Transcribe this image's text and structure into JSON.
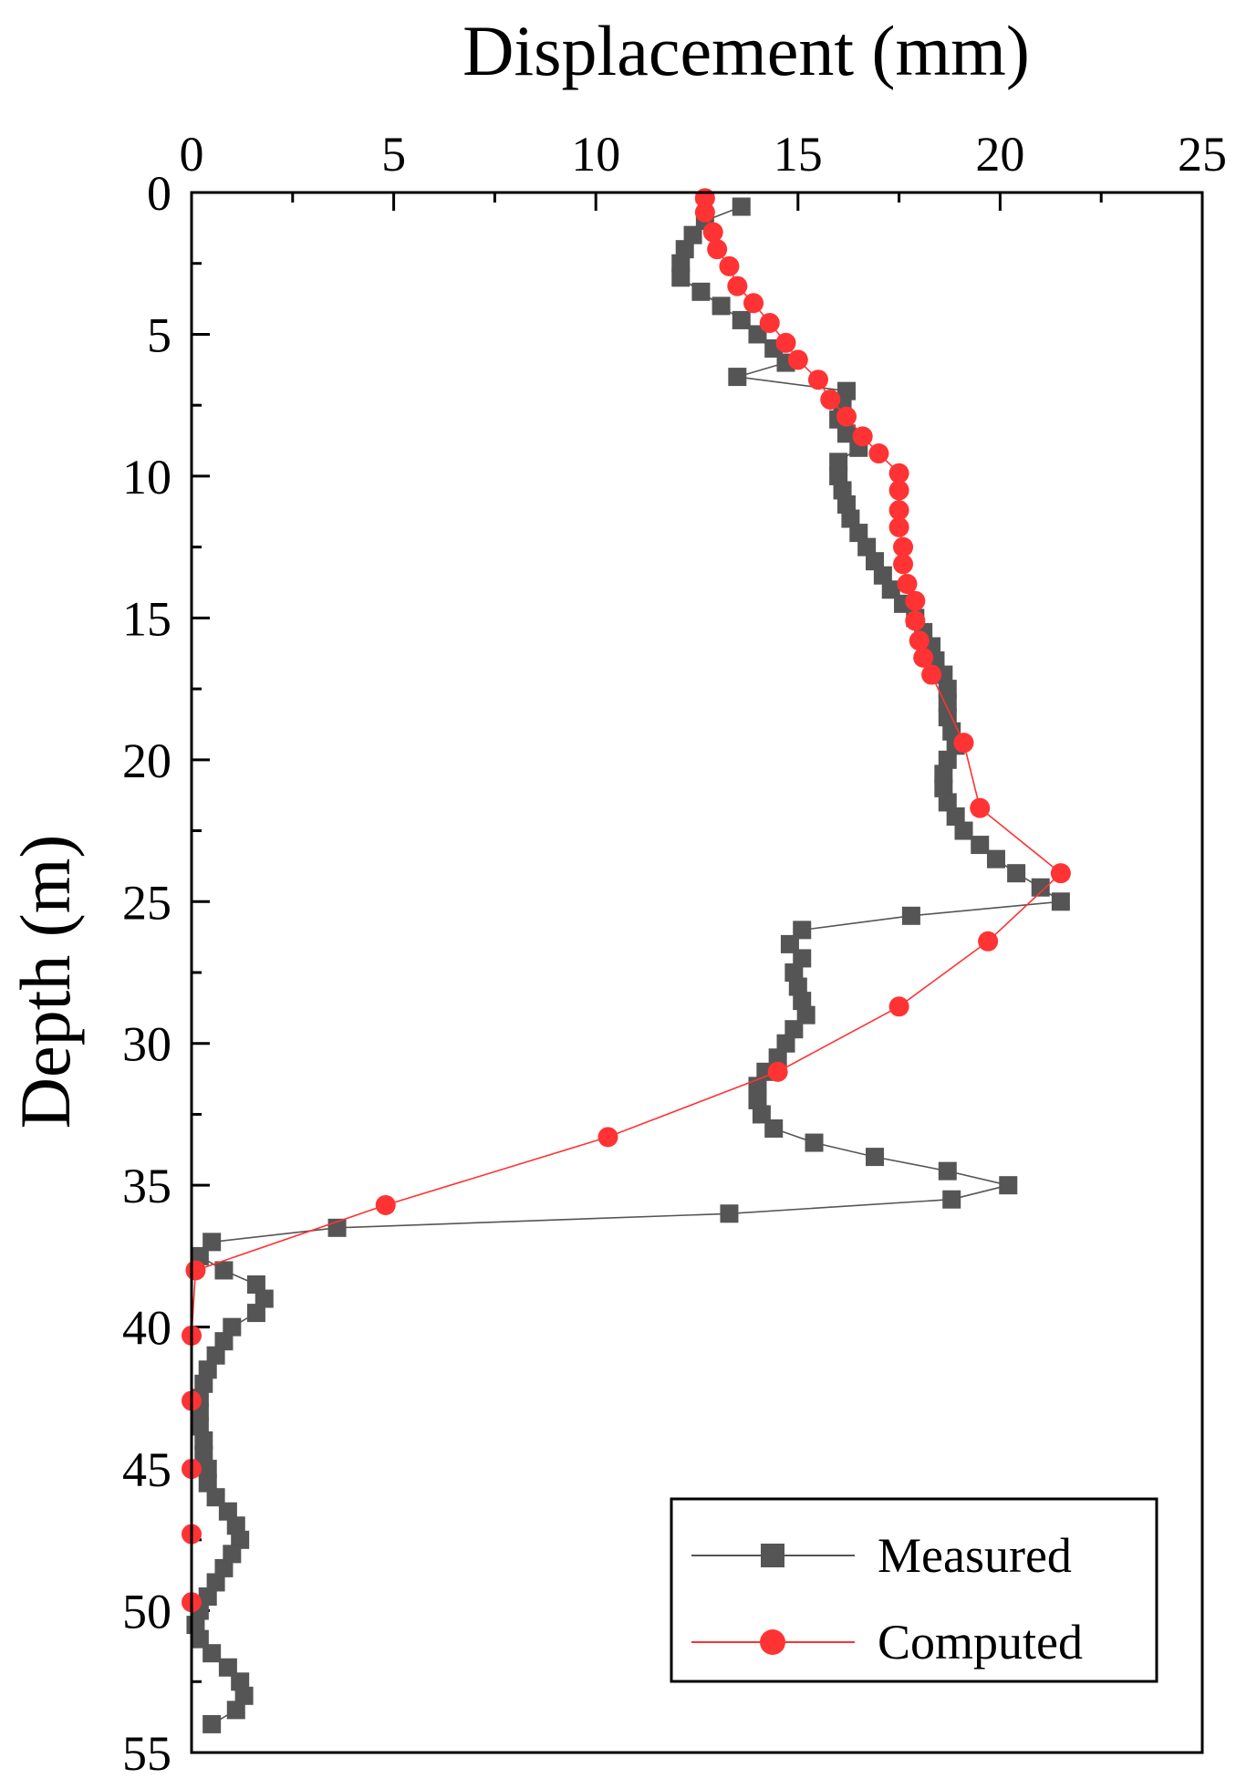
{
  "chart_data": {
    "type": "scatter",
    "xlabel": "Displacement (mm)",
    "ylabel": "Depth (m)",
    "xlim": [
      0,
      25
    ],
    "ylim": [
      0,
      55
    ],
    "x_axis_position": "top",
    "y_axis_inverted": true,
    "x_ticks": [
      "0",
      "5",
      "10",
      "15",
      "20",
      "25"
    ],
    "y_ticks": [
      "0",
      "5",
      "10",
      "15",
      "20",
      "25",
      "30",
      "35",
      "40",
      "45",
      "50",
      "55"
    ],
    "grid": false,
    "legend": {
      "position": "bottom-right",
      "entries": [
        "Measured",
        "Computed"
      ]
    },
    "series": [
      {
        "name": "Measured",
        "color": "#555555",
        "marker": "square",
        "points": [
          [
            13.6,
            0.5
          ],
          [
            12.7,
            1.0
          ],
          [
            12.4,
            1.5
          ],
          [
            12.2,
            2.0
          ],
          [
            12.1,
            2.5
          ],
          [
            12.1,
            3.0
          ],
          [
            12.6,
            3.5
          ],
          [
            13.1,
            4.0
          ],
          [
            13.6,
            4.5
          ],
          [
            14.0,
            5.0
          ],
          [
            14.4,
            5.5
          ],
          [
            14.7,
            6.0
          ],
          [
            13.5,
            6.5
          ],
          [
            16.2,
            7.0
          ],
          [
            16.1,
            7.5
          ],
          [
            16.0,
            8.0
          ],
          [
            16.2,
            8.5
          ],
          [
            16.5,
            9.0
          ],
          [
            16.0,
            9.5
          ],
          [
            16.0,
            10.0
          ],
          [
            16.1,
            10.5
          ],
          [
            16.2,
            11.0
          ],
          [
            16.3,
            11.5
          ],
          [
            16.5,
            12.0
          ],
          [
            16.7,
            12.5
          ],
          [
            16.9,
            13.0
          ],
          [
            17.1,
            13.5
          ],
          [
            17.3,
            14.0
          ],
          [
            17.6,
            14.5
          ],
          [
            17.9,
            15.0
          ],
          [
            18.1,
            15.5
          ],
          [
            18.3,
            16.0
          ],
          [
            18.4,
            16.5
          ],
          [
            18.6,
            17.0
          ],
          [
            18.7,
            17.5
          ],
          [
            18.7,
            18.0
          ],
          [
            18.7,
            18.5
          ],
          [
            18.8,
            19.0
          ],
          [
            18.9,
            19.5
          ],
          [
            18.7,
            20.0
          ],
          [
            18.6,
            20.5
          ],
          [
            18.6,
            21.0
          ],
          [
            18.7,
            21.5
          ],
          [
            18.9,
            22.0
          ],
          [
            19.1,
            22.5
          ],
          [
            19.5,
            23.0
          ],
          [
            19.9,
            23.5
          ],
          [
            20.4,
            24.0
          ],
          [
            21.0,
            24.5
          ],
          [
            21.5,
            25.0
          ],
          [
            17.8,
            25.5
          ],
          [
            15.1,
            26.0
          ],
          [
            14.8,
            26.5
          ],
          [
            15.1,
            27.0
          ],
          [
            14.9,
            27.5
          ],
          [
            15.0,
            28.0
          ],
          [
            15.1,
            28.5
          ],
          [
            15.2,
            29.0
          ],
          [
            14.9,
            29.5
          ],
          [
            14.7,
            30.0
          ],
          [
            14.5,
            30.5
          ],
          [
            14.2,
            31.0
          ],
          [
            14.0,
            31.5
          ],
          [
            14.0,
            32.0
          ],
          [
            14.1,
            32.5
          ],
          [
            14.4,
            33.0
          ],
          [
            15.4,
            33.5
          ],
          [
            16.9,
            34.0
          ],
          [
            18.7,
            34.5
          ],
          [
            20.2,
            35.0
          ],
          [
            18.8,
            35.5
          ],
          [
            13.3,
            36.0
          ],
          [
            3.6,
            36.5
          ],
          [
            0.5,
            37.0
          ],
          [
            0.2,
            37.5
          ],
          [
            0.8,
            38.0
          ],
          [
            1.6,
            38.5
          ],
          [
            1.8,
            39.0
          ],
          [
            1.6,
            39.5
          ],
          [
            1.0,
            40.0
          ],
          [
            0.8,
            40.5
          ],
          [
            0.6,
            41.0
          ],
          [
            0.4,
            41.5
          ],
          [
            0.3,
            42.0
          ],
          [
            0.2,
            42.5
          ],
          [
            0.2,
            43.0
          ],
          [
            0.2,
            43.5
          ],
          [
            0.3,
            44.0
          ],
          [
            0.3,
            44.5
          ],
          [
            0.4,
            45.0
          ],
          [
            0.4,
            45.5
          ],
          [
            0.6,
            46.0
          ],
          [
            0.9,
            46.5
          ],
          [
            1.1,
            47.0
          ],
          [
            1.2,
            47.5
          ],
          [
            1.0,
            48.0
          ],
          [
            0.8,
            48.5
          ],
          [
            0.6,
            49.0
          ],
          [
            0.4,
            49.5
          ],
          [
            0.2,
            50.0
          ],
          [
            0.1,
            50.5
          ],
          [
            0.2,
            51.0
          ],
          [
            0.5,
            51.5
          ],
          [
            0.9,
            52.0
          ],
          [
            1.2,
            52.5
          ],
          [
            1.3,
            53.0
          ],
          [
            1.1,
            53.5
          ],
          [
            0.5,
            54.0
          ]
        ]
      },
      {
        "name": "Computed",
        "color": "#ff3333",
        "marker": "circle",
        "points": [
          [
            12.7,
            0.2
          ],
          [
            12.7,
            0.7
          ],
          [
            12.9,
            1.4
          ],
          [
            13.0,
            2.0
          ],
          [
            13.3,
            2.6
          ],
          [
            13.5,
            3.3
          ],
          [
            13.9,
            3.9
          ],
          [
            14.3,
            4.6
          ],
          [
            14.7,
            5.3
          ],
          [
            15.0,
            5.9
          ],
          [
            15.5,
            6.6
          ],
          [
            15.8,
            7.3
          ],
          [
            16.2,
            7.9
          ],
          [
            16.6,
            8.6
          ],
          [
            17.0,
            9.2
          ],
          [
            17.5,
            9.9
          ],
          [
            17.5,
            10.5
          ],
          [
            17.5,
            11.2
          ],
          [
            17.5,
            11.8
          ],
          [
            17.6,
            12.5
          ],
          [
            17.6,
            13.1
          ],
          [
            17.7,
            13.8
          ],
          [
            17.9,
            14.4
          ],
          [
            17.9,
            15.1
          ],
          [
            18.0,
            15.8
          ],
          [
            18.1,
            16.4
          ],
          [
            18.3,
            17.0
          ],
          [
            19.1,
            19.4
          ],
          [
            19.5,
            21.7
          ],
          [
            21.5,
            24.0
          ],
          [
            19.7,
            26.4
          ],
          [
            17.5,
            28.7
          ],
          [
            14.5,
            31.0
          ],
          [
            10.3,
            33.3
          ],
          [
            4.8,
            35.7
          ],
          [
            0.1,
            38.0
          ],
          [
            0.0,
            40.3
          ],
          [
            0.0,
            42.6
          ],
          [
            0.0,
            45.0
          ],
          [
            0.0,
            47.3
          ],
          [
            0.0,
            49.7
          ]
        ]
      }
    ]
  }
}
